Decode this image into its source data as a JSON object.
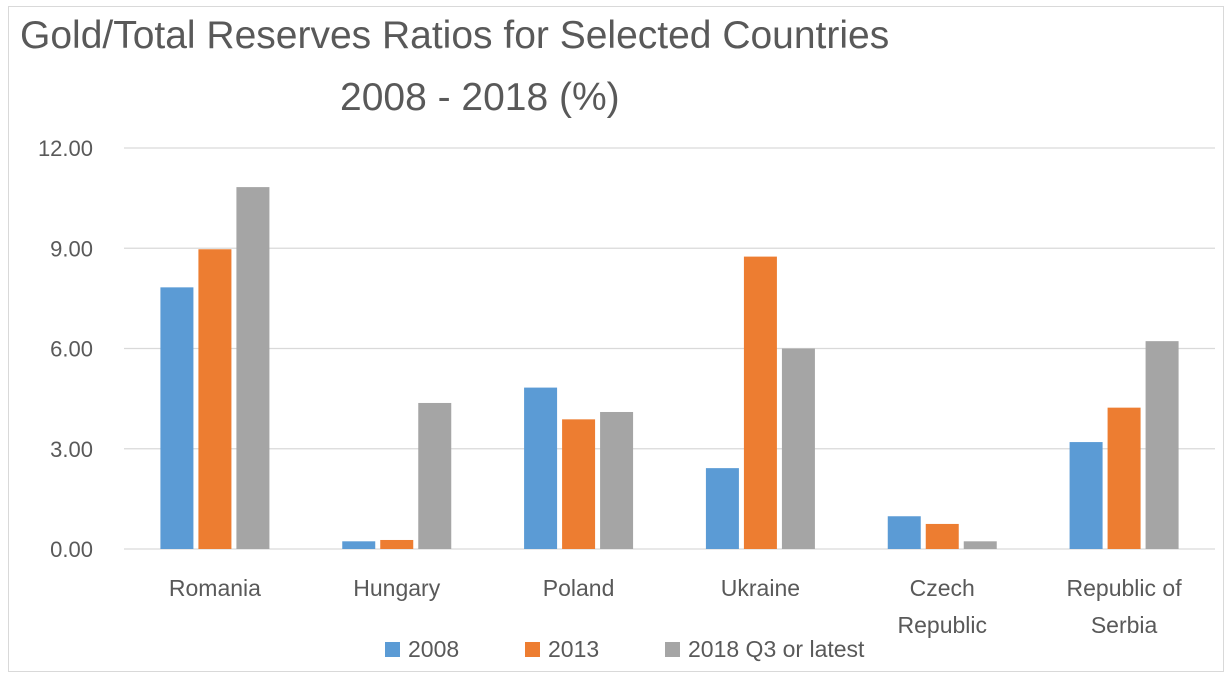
{
  "chart_data": {
    "type": "bar",
    "title": "Gold/Total Reserves Ratios for Selected Countries",
    "subtitle": "2008 - 2018 (%)",
    "xlabel": "",
    "ylabel": "",
    "categories": [
      [
        "Romania"
      ],
      [
        "Hungary"
      ],
      [
        "Poland"
      ],
      [
        "Ukraine"
      ],
      [
        "Czech",
        "Republic"
      ],
      [
        "Republic of",
        "Serbia"
      ]
    ],
    "series": [
      {
        "name": "2008",
        "color": "#5b9bd5",
        "values": [
          7.83,
          0.23,
          4.83,
          2.42,
          0.98,
          3.2
        ]
      },
      {
        "name": "2013",
        "color": "#ed7d31",
        "values": [
          8.97,
          0.27,
          3.88,
          8.75,
          0.75,
          4.23
        ]
      },
      {
        "name": "2018 Q3 or latest",
        "color": "#a5a5a5",
        "values": [
          10.83,
          4.37,
          4.1,
          6.0,
          0.23,
          6.22
        ]
      }
    ],
    "ylim": [
      0,
      12
    ],
    "yticks": [
      "0.00",
      "3.00",
      "6.00",
      "9.00",
      "12.00"
    ],
    "ytick_values": [
      0,
      3,
      6,
      9,
      12
    ],
    "grid": true,
    "legend_position": "bottom"
  }
}
